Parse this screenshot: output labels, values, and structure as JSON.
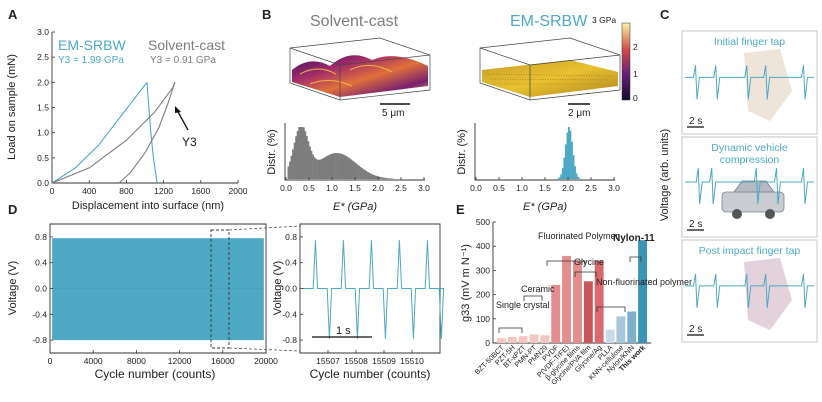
{
  "colors": {
    "teal": "#4ea9c4",
    "gray": "#7d7d7d",
    "darkText": "#222222"
  },
  "panels": {
    "A": "A",
    "B": "B",
    "C": "C",
    "D": "D",
    "E": "E"
  },
  "chart_data": [
    {
      "id": "A",
      "type": "line",
      "xlabel": "Displacement into surface (nm)",
      "ylabel": "Load on sample (mN)",
      "xlim": [
        0,
        2000
      ],
      "ylim": [
        0,
        3.0
      ],
      "xticks": [
        "0",
        "400",
        "800",
        "1200",
        "1600",
        "2000"
      ],
      "yticks": [
        "0.0",
        "0.5",
        "1.0",
        "1.5",
        "2.0",
        "2.5",
        "3.0"
      ],
      "legend": [
        {
          "name": "EM-SRBW",
          "modulus": "Y3 = 1.99 GPa",
          "color": "#4ea9c4"
        },
        {
          "name": "Solvent-cast",
          "modulus": "Y3 = 0.91 GPa",
          "color": "#7d7d7d"
        }
      ],
      "annotation": "Y3",
      "series": [
        {
          "name": "EM-SRBW load",
          "color": "#4ea9c4",
          "x": [
            0,
            250,
            500,
            750,
            1000,
            1020
          ],
          "y": [
            0,
            0.3,
            0.75,
            1.35,
            1.95,
            2.0
          ]
        },
        {
          "name": "EM-SRBW unload",
          "color": "#4ea9c4",
          "x": [
            1020,
            1040,
            1060,
            1090,
            1130
          ],
          "y": [
            2.0,
            1.55,
            1.05,
            0.5,
            0
          ]
        },
        {
          "name": "Solvent-cast load",
          "color": "#7d7d7d",
          "x": [
            0,
            400,
            800,
            1100,
            1300,
            1320
          ],
          "y": [
            0,
            0.3,
            0.85,
            1.4,
            1.9,
            2.0
          ]
        },
        {
          "name": "Solvent-cast unload",
          "color": "#7d7d7d",
          "x": [
            1320,
            1250,
            1150,
            1000,
            840,
            720
          ],
          "y": [
            2.0,
            1.6,
            1.1,
            0.6,
            0.2,
            0
          ]
        }
      ]
    },
    {
      "id": "B",
      "type": "bar",
      "surfaces": {
        "left_title": "Solvent-cast",
        "right_title": "EM-SRBW",
        "left_scale": "5 μm",
        "right_scale": "2 μm"
      },
      "colorbar": {
        "max_label": "3 GPa",
        "ticks": [
          "2",
          "1",
          "0"
        ]
      },
      "xlabel": "E* (GPa)",
      "ylabel": "Distr. (%)",
      "xlim": [
        0,
        3.0
      ],
      "xticks": [
        "0.0",
        "0.5",
        "1.0",
        "1.5",
        "2.0",
        "2.5",
        "3.0"
      ],
      "series": [
        {
          "name": "Solvent-cast",
          "color": "#7d7d7d",
          "peak": 0.3,
          "range": [
            0.05,
            2.7
          ]
        },
        {
          "name": "EM-SRBW",
          "color": "#4ea9c4",
          "peak": 2.0,
          "range": [
            1.6,
            2.4
          ]
        }
      ]
    },
    {
      "id": "C",
      "type": "line",
      "ylabel": "Voltage (arb. units)",
      "subpanels": [
        {
          "title": "Initial finger tap",
          "scale": "2 s"
        },
        {
          "title": "Dynamic vehicle compression",
          "scale": "2 s"
        },
        {
          "title": "Post impact finger tap",
          "scale": "2 s"
        }
      ]
    },
    {
      "id": "D",
      "type": "area",
      "xlabel": "Cycle number (counts)",
      "ylabel": "Voltage (V)",
      "xlim": [
        0,
        20000
      ],
      "ylim": [
        -1.0,
        1.0
      ],
      "xticks": [
        "0",
        "4000",
        "8000",
        "12000",
        "16000",
        "20000"
      ],
      "yticks": [
        "0.8",
        "0.4",
        "0.0",
        "-0.4",
        "-0.8"
      ],
      "envelope": {
        "upper": 0.78,
        "lower": -0.8,
        "color": "#4ea9c4"
      }
    },
    {
      "id": "D-inset",
      "type": "line",
      "xlabel": "Cycle number (counts)",
      "ylabel": "Voltage (V)",
      "xlim": [
        15506,
        15511
      ],
      "ylim": [
        -1.0,
        1.0
      ],
      "xticks": [
        "15507",
        "15508",
        "15509",
        "15510"
      ],
      "yticks": [
        "0.8",
        "0.4",
        "0.0",
        "-0.4",
        "-0.8"
      ],
      "scalebar": "1 s"
    },
    {
      "id": "E",
      "type": "bar",
      "ylabel": "g33 (mV m N⁻¹)",
      "ylim": [
        0,
        500
      ],
      "yticks": [
        "0",
        "100",
        "200",
        "300",
        "400",
        "500"
      ],
      "categories": [
        "BZT-50BCT",
        "PZT-5H",
        "BT-xPZT",
        "PMN-PT",
        "PMN29",
        "PVDF",
        "P(VDF-TrFE)",
        "β-glycine films",
        "Glycine/PVA film",
        "Glycine/Ag",
        "PLLA",
        "KNN-cellulose",
        "Nylon/KNN",
        "This work"
      ],
      "values": [
        20,
        25,
        28,
        35,
        32,
        240,
        360,
        340,
        255,
        340,
        55,
        110,
        130,
        425
      ],
      "bar_colors": [
        "#f2c6c2",
        "#f2c6c2",
        "#f2c6c2",
        "#f2c6c2",
        "#f2c6c2",
        "#e48d8f",
        "#e48d8f",
        "#e48d8f",
        "#c9555a",
        "#d8696d",
        "#c8dbe6",
        "#a8c7da",
        "#7fb0cb",
        "#3b93b6"
      ],
      "group_labels": [
        "Single crystal",
        "Ceramic",
        "Fluorinated Polymer",
        "Glycine",
        "Non-fluorinated polymer",
        "Nylon-11"
      ]
    }
  ]
}
